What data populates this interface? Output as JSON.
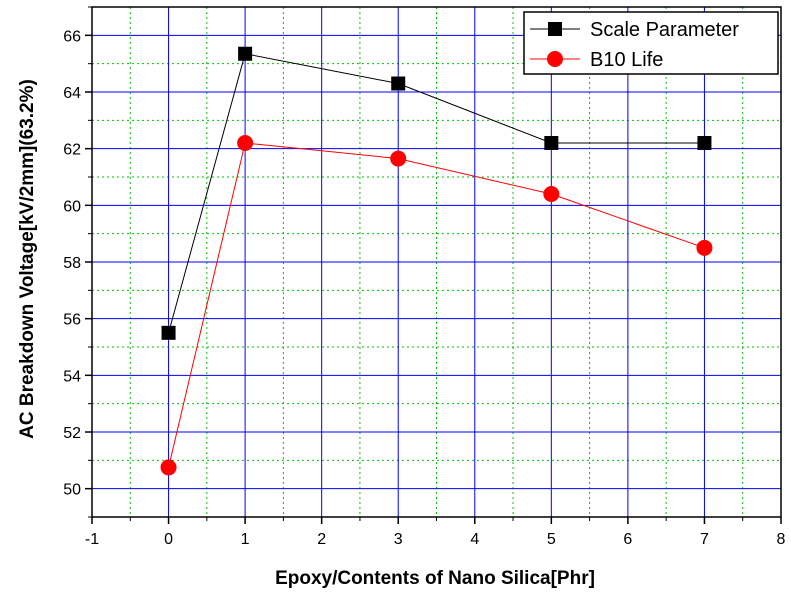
{
  "chart_data": {
    "type": "line",
    "title": "",
    "xlabel": "Epoxy/Contents of Nano Silica[Phr]",
    "ylabel": "AC Breakdown Voltage[kV/2mm](63.2%)",
    "xlim": [
      -1,
      8
    ],
    "ylim": [
      49,
      67
    ],
    "x_ticks": [
      -1,
      0,
      1,
      2,
      3,
      4,
      5,
      6,
      7,
      8
    ],
    "y_ticks": [
      50,
      52,
      54,
      56,
      58,
      60,
      62,
      64,
      66
    ],
    "grid": true,
    "legend_position": "top-right",
    "x": [
      0,
      1,
      3,
      5,
      7
    ],
    "series": [
      {
        "name": "Scale Parameter",
        "values": [
          55.5,
          65.35,
          64.3,
          62.2,
          62.2
        ],
        "color": "#000000",
        "marker": "square"
      },
      {
        "name": "B10 Life",
        "values": [
          50.75,
          62.2,
          61.65,
          60.4,
          58.5
        ],
        "color": "#ff0000",
        "marker": "circle"
      }
    ]
  }
}
